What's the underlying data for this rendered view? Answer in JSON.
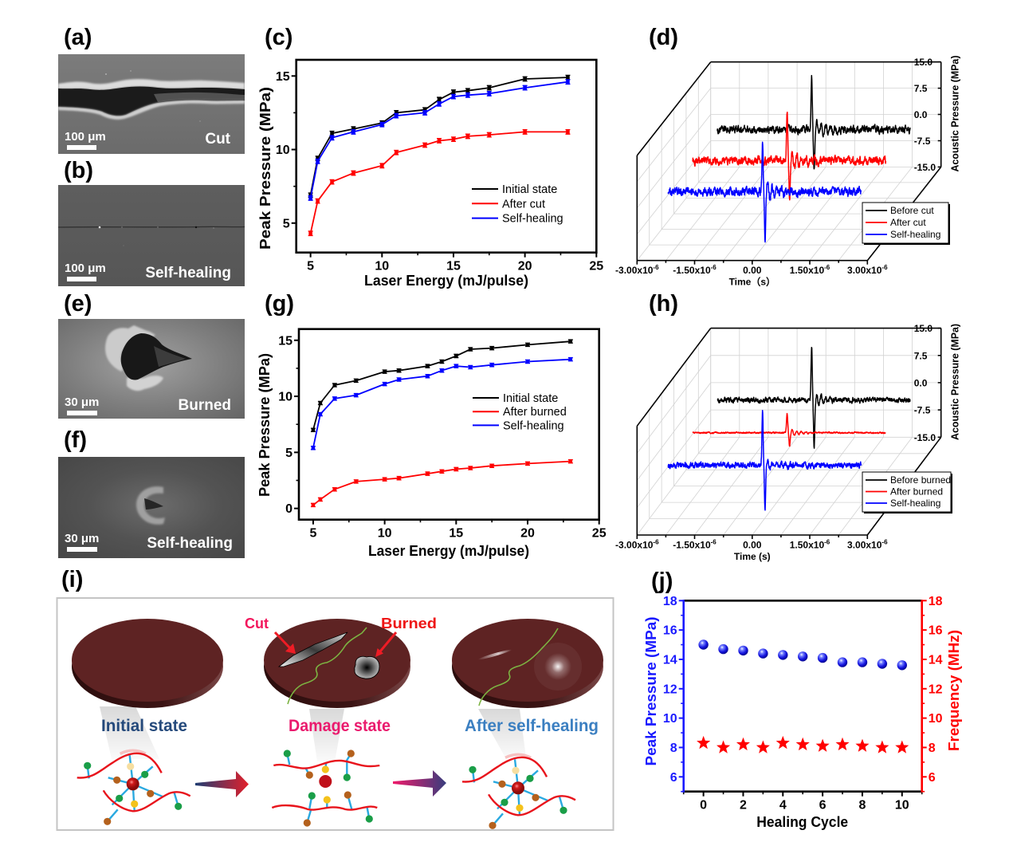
{
  "panels": {
    "a": {
      "label": "(a)",
      "scale_bar": "100 μm",
      "caption": "Cut"
    },
    "b": {
      "label": "(b)",
      "scale_bar": "100 μm",
      "caption": "Self-healing"
    },
    "c": {
      "label": "(c)"
    },
    "d": {
      "label": "(d)"
    },
    "e": {
      "label": "(e)",
      "scale_bar": "30 μm",
      "caption": "Burned"
    },
    "f": {
      "label": "(f)",
      "scale_bar": "30 μm",
      "caption": "Self-healing"
    },
    "g": {
      "label": "(g)"
    },
    "h": {
      "label": "(h)"
    },
    "i": {
      "label": "(i)",
      "states": [
        {
          "name": "Initial state",
          "color": "#24497b"
        },
        {
          "name": "Damage state",
          "color": "#ea1a6d"
        },
        {
          "name": "After self-healing",
          "color": "#3b7fc1"
        }
      ],
      "damage_labels": [
        {
          "name": "Cut",
          "color": "#f2165c"
        },
        {
          "name": "Burned",
          "color": "#ee1515"
        }
      ]
    },
    "j": {
      "label": "(j)"
    }
  },
  "chart_data": [
    {
      "panel": "c",
      "type": "line",
      "title": "",
      "xlabel": "Laser Energy (mJ/pulse)",
      "ylabel": "Peak Pressure (MPa)",
      "xlim": [
        4,
        25
      ],
      "ylim": [
        3,
        16.1
      ],
      "xticks": [
        5,
        10,
        15,
        20,
        25
      ],
      "yticks": [
        5,
        10,
        15
      ],
      "grid": false,
      "legend": "right",
      "error": 0.15,
      "x": [
        5,
        5.5,
        6.5,
        8,
        10,
        11,
        13,
        14,
        15,
        16,
        17.5,
        20,
        23
      ],
      "series": [
        {
          "name": "Initial state",
          "color": "#000000",
          "values": [
            6.9,
            9.4,
            11.1,
            11.4,
            11.8,
            12.5,
            12.7,
            13.4,
            13.9,
            14.0,
            14.2,
            14.8,
            14.9
          ]
        },
        {
          "name": "After cut",
          "color": "#ff0000",
          "values": [
            4.3,
            6.5,
            7.8,
            8.4,
            8.9,
            9.8,
            10.3,
            10.6,
            10.7,
            10.9,
            11.0,
            11.2,
            11.2
          ]
        },
        {
          "name": "Self-healing",
          "color": "#0000ff",
          "values": [
            6.7,
            9.2,
            10.8,
            11.2,
            11.7,
            12.3,
            12.5,
            13.1,
            13.6,
            13.7,
            13.8,
            14.2,
            14.6
          ]
        }
      ]
    },
    {
      "panel": "d",
      "type": "line",
      "subtype": "3d-waterfall",
      "title": "",
      "xlabel": "Time（s）",
      "zlabel": "Acoustic Pressure (MPa)",
      "xlim": [
        -3e-06,
        3e-06
      ],
      "xticks": [
        -3e-06,
        -1.5e-06,
        0,
        1.5e-06,
        3e-06
      ],
      "xtick_labels": [
        "-3.00x10",
        "-1.50x10",
        "0.00",
        "1.50x10",
        "3.00x10"
      ],
      "xtick_exponents": [
        "-6",
        "-6",
        "",
        "-6",
        "-6"
      ],
      "zlim": [
        -15,
        15
      ],
      "zticks": [
        15,
        7.5,
        0,
        -7.5,
        -15
      ],
      "ztick_labels": [
        "15.0",
        "7.5",
        "0.0",
        "-7.5",
        "-15.0"
      ],
      "grid": true,
      "legend": "lower-right",
      "time_range": [
        -2.83e-06,
        2.2e-06
      ],
      "pulse_time": -3.5e-07,
      "series": [
        {
          "name": "Before cut",
          "color": "#000000",
          "baseline": -4.3,
          "peak": 10.5,
          "trough": -15.5,
          "noise": 0.8,
          "ringing": 2.5
        },
        {
          "name": "After cut",
          "color": "#ff0000",
          "baseline": -4.3,
          "peak": 9.9,
          "trough": -15.8,
          "noise": 0.9,
          "ringing": 3.0
        },
        {
          "name": "Self-healing",
          "color": "#0000ff",
          "baseline": -4.3,
          "peak": 10.3,
          "trough": -18.5,
          "noise": 0.9,
          "ringing": 2.5
        }
      ]
    },
    {
      "panel": "g",
      "type": "line",
      "title": "",
      "xlabel": "Laser Energy (mJ/pulse)",
      "ylabel": "Peak Pressure (MPa)",
      "xlim": [
        4,
        25
      ],
      "ylim": [
        -1,
        16
      ],
      "xticks": [
        5,
        10,
        15,
        20,
        25
      ],
      "yticks": [
        0,
        5,
        10,
        15
      ],
      "grid": false,
      "legend": "right",
      "error": 0.15,
      "x": [
        5,
        5.5,
        6.5,
        8,
        10,
        11,
        13,
        14,
        15,
        16,
        17.5,
        20,
        23
      ],
      "series": [
        {
          "name": "Initial state",
          "color": "#000000",
          "values": [
            7.0,
            9.4,
            11.0,
            11.4,
            12.2,
            12.3,
            12.7,
            13.1,
            13.6,
            14.2,
            14.3,
            14.6,
            14.9
          ]
        },
        {
          "name": "After burned",
          "color": "#ff0000",
          "values": [
            0.3,
            0.8,
            1.7,
            2.4,
            2.6,
            2.7,
            3.1,
            3.3,
            3.5,
            3.6,
            3.8,
            4.0,
            4.2
          ]
        },
        {
          "name": "Self-healing",
          "color": "#0000ff",
          "values": [
            5.4,
            8.4,
            9.8,
            10.1,
            11.1,
            11.5,
            11.8,
            12.3,
            12.7,
            12.6,
            12.8,
            13.1,
            13.3
          ]
        }
      ]
    },
    {
      "panel": "h",
      "type": "line",
      "subtype": "3d-waterfall",
      "title": "",
      "xlabel": "Time (s)",
      "zlabel": "Acoustic Pressure (MPa)",
      "xlim": [
        -3e-06,
        3e-06
      ],
      "xticks": [
        -3e-06,
        -1.5e-06,
        0,
        1.5e-06,
        3e-06
      ],
      "xtick_labels": [
        "-3.00x10",
        "-1.50x10",
        "0.00",
        "1.50x10",
        "3.00x10"
      ],
      "xtick_exponents": [
        "-6",
        "-6",
        "",
        "-6",
        "-6"
      ],
      "zlim": [
        -15,
        15
      ],
      "zticks": [
        15,
        7.5,
        0,
        -7.5,
        -15
      ],
      "ztick_labels": [
        "15.0",
        "7.5",
        "0.0",
        "-7.5",
        "-15.0"
      ],
      "grid": true,
      "legend": "lower-right",
      "time_range": [
        -2.83e-06,
        2.2e-06
      ],
      "pulse_time": -3.5e-07,
      "series": [
        {
          "name": "Before burned",
          "color": "#000000",
          "baseline": -4.8,
          "peak": 10.2,
          "trough": -18.4,
          "noise": 0.5,
          "ringing": 1.5
        },
        {
          "name": "After burned",
          "color": "#ff0000",
          "baseline": -4.8,
          "peak": 0.5,
          "trough": -8.4,
          "noise": 0.15,
          "ringing": 0.8
        },
        {
          "name": "Self-healing",
          "color": "#0000ff",
          "baseline": -4.8,
          "peak": 9.9,
          "trough": -17.2,
          "noise": 0.6,
          "ringing": 1.2
        }
      ]
    },
    {
      "panel": "j",
      "type": "scatter",
      "title": "",
      "xlabel": "Healing Cycle",
      "ylabel": "Peak Pressure (MPa)",
      "y2label": "Frequency (MHz)",
      "xlim": [
        -1,
        11
      ],
      "ylim": [
        5,
        18
      ],
      "y2lim": [
        5,
        18
      ],
      "xticks": [
        0,
        2,
        4,
        6,
        8,
        10
      ],
      "yticks": [
        6,
        8,
        10,
        12,
        14,
        16,
        18
      ],
      "y2ticks": [
        6,
        8,
        10,
        12,
        14,
        16,
        18
      ],
      "grid": false,
      "legend": "none",
      "x": [
        0,
        1,
        2,
        3,
        4,
        5,
        6,
        7,
        8,
        9,
        10
      ],
      "series": [
        {
          "name": "Peak Pressure",
          "axis": "left",
          "marker": "sphere",
          "color": "#1a1aff",
          "values": [
            15.0,
            14.7,
            14.6,
            14.4,
            14.3,
            14.2,
            14.1,
            13.8,
            13.8,
            13.7,
            13.6
          ]
        },
        {
          "name": "Frequency",
          "axis": "right",
          "marker": "star",
          "color": "#ff0000",
          "values": [
            8.3,
            8.0,
            8.2,
            8.0,
            8.3,
            8.2,
            8.1,
            8.2,
            8.1,
            8.0,
            8.0
          ]
        }
      ]
    }
  ]
}
